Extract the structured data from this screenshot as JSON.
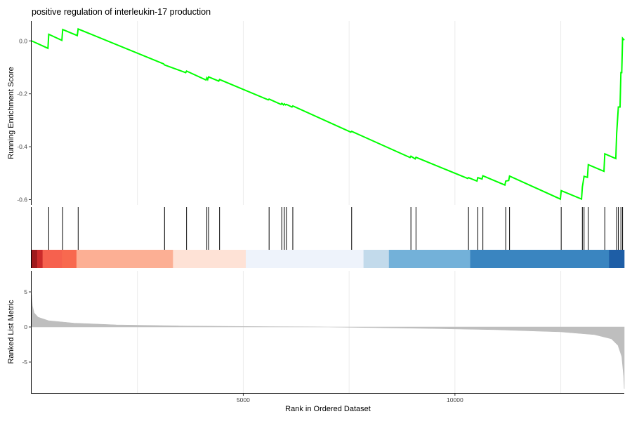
{
  "chart_data": {
    "type": "line",
    "title": "positive regulation of interleukin-17 production",
    "n_genes": 14000,
    "colors": {
      "running_score": "#00ff00",
      "hits": "#000000",
      "metric_fill": "#bebebe"
    },
    "panels": {
      "running_score": {
        "ylabel": "Running Enrichment Score",
        "yticks": [
          0.0,
          -0.2,
          -0.4,
          -0.6
        ],
        "ytick_labels": [
          "0.0",
          "-0.2",
          "-0.4",
          "-0.6"
        ],
        "ylim": [
          -0.62,
          0.075
        ],
        "series": [
          {
            "points": [
              [
                0,
                0.0
              ],
              [
                386,
                -0.028
              ],
              [
                405,
                0.025
              ],
              [
                715,
                0.002
              ],
              [
                735,
                0.043
              ],
              [
                1078,
                0.02
              ],
              [
                1100,
                0.045
              ],
              [
                3120,
                -0.087
              ],
              [
                3140,
                -0.091
              ],
              [
                3640,
                -0.12
              ],
              [
                3660,
                -0.114
              ],
              [
                4120,
                -0.148
              ],
              [
                4140,
                -0.14
              ],
              [
                4160,
                -0.146
              ],
              [
                4180,
                -0.136
              ],
              [
                4420,
                -0.152
              ],
              [
                4440,
                -0.146
              ],
              [
                5590,
                -0.223
              ],
              [
                5610,
                -0.22
              ],
              [
                5890,
                -0.24
              ],
              [
                5910,
                -0.236
              ],
              [
                5950,
                -0.242
              ],
              [
                5970,
                -0.238
              ],
              [
                6000,
                -0.242
              ],
              [
                6020,
                -0.24
              ],
              [
                6150,
                -0.25
              ],
              [
                6170,
                -0.246
              ],
              [
                7540,
                -0.345
              ],
              [
                7560,
                -0.342
              ],
              [
                8940,
                -0.441
              ],
              [
                8960,
                -0.436
              ],
              [
                9060,
                -0.446
              ],
              [
                9080,
                -0.44
              ],
              [
                10300,
                -0.52
              ],
              [
                10320,
                -0.517
              ],
              [
                10520,
                -0.53
              ],
              [
                10540,
                -0.517
              ],
              [
                10640,
                -0.522
              ],
              [
                10660,
                -0.51
              ],
              [
                11180,
                -0.545
              ],
              [
                11200,
                -0.53
              ],
              [
                11270,
                -0.528
              ],
              [
                11290,
                -0.511
              ],
              [
                12490,
                -0.598
              ],
              [
                12510,
                -0.566
              ],
              [
                12990,
                -0.598
              ],
              [
                13010,
                -0.552
              ],
              [
                13030,
                -0.533
              ],
              [
                13050,
                -0.512
              ],
              [
                13130,
                -0.516
              ],
              [
                13150,
                -0.468
              ],
              [
                13520,
                -0.493
              ],
              [
                13540,
                -0.427
              ],
              [
                13800,
                -0.445
              ],
              [
                13820,
                -0.35
              ],
              [
                13860,
                -0.25
              ],
              [
                13900,
                -0.25
              ],
              [
                13920,
                -0.12
              ],
              [
                13940,
                -0.12
              ],
              [
                13960,
                0.01
              ],
              [
                14000,
                0.003
              ]
            ]
          }
        ]
      },
      "hits": {
        "ranks": [
          405,
          735,
          1100,
          3140,
          3660,
          4140,
          4180,
          4440,
          5610,
          5910,
          5970,
          6020,
          6170,
          7560,
          8960,
          9080,
          10320,
          10540,
          10660,
          11200,
          11290,
          12510,
          13010,
          13050,
          13150,
          13540,
          13820,
          13860,
          13920,
          13960
        ]
      },
      "color_bar": [
        {
          "start": 0,
          "end": 130,
          "color": "#9e1a1d"
        },
        {
          "start": 130,
          "end": 260,
          "color": "#cb2a2a"
        },
        {
          "start": 260,
          "end": 720,
          "color": "#f6614e"
        },
        {
          "start": 720,
          "end": 1060,
          "color": "#f8694f"
        },
        {
          "start": 1060,
          "end": 3340,
          "color": "#fcaf94"
        },
        {
          "start": 3340,
          "end": 5060,
          "color": "#fee2d6"
        },
        {
          "start": 5060,
          "end": 7840,
          "color": "#eef3fb"
        },
        {
          "start": 7840,
          "end": 8440,
          "color": "#c2daeb"
        },
        {
          "start": 8440,
          "end": 10360,
          "color": "#73b1d9"
        },
        {
          "start": 10360,
          "end": 13640,
          "color": "#3a85c0"
        },
        {
          "start": 13640,
          "end": 14000,
          "color": "#1e5ea6"
        }
      ],
      "ranked_metric": {
        "ylabel": "Ranked List Metric",
        "xlabel": "Rank in Ordered Dataset",
        "yticks": [
          5,
          0,
          -5
        ],
        "ytick_labels": [
          "5",
          "0",
          "-5"
        ],
        "ylim": [
          -9.5,
          8.0
        ],
        "xticks": [
          5000,
          10000
        ],
        "xtick_labels": [
          "5000",
          "10000"
        ],
        "points": [
          [
            0,
            4.6
          ],
          [
            20,
            3.0
          ],
          [
            60,
            2.0
          ],
          [
            150,
            1.4
          ],
          [
            400,
            0.9
          ],
          [
            1000,
            0.55
          ],
          [
            2000,
            0.3
          ],
          [
            3500,
            0.15
          ],
          [
            5000,
            0.07
          ],
          [
            6500,
            0.02
          ],
          [
            7000,
            0.0
          ],
          [
            8000,
            -0.08
          ],
          [
            9500,
            -0.22
          ],
          [
            11000,
            -0.4
          ],
          [
            12500,
            -0.7
          ],
          [
            13300,
            -1.1
          ],
          [
            13700,
            -1.7
          ],
          [
            13850,
            -2.6
          ],
          [
            13940,
            -4.2
          ],
          [
            13985,
            -7.0
          ],
          [
            14000,
            -8.8
          ]
        ]
      }
    }
  }
}
